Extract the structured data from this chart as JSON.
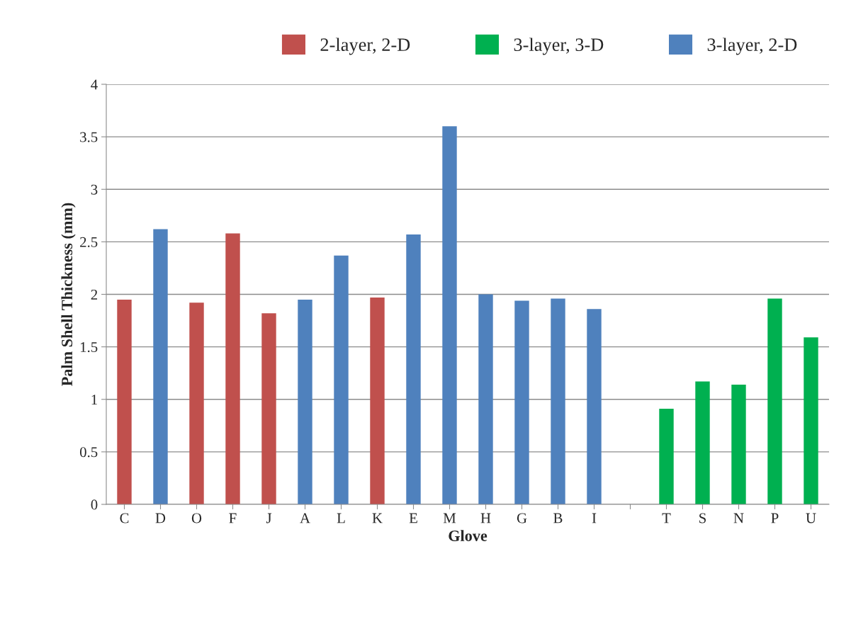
{
  "chart_data": {
    "type": "bar",
    "xlabel": "Glove",
    "ylabel": "Palm Shell Thickness (mm)",
    "categories": [
      "C",
      "D",
      "O",
      "F",
      "J",
      "A",
      "L",
      "K",
      "E",
      "M",
      "H",
      "G",
      "B",
      "I",
      null,
      "T",
      "S",
      "N",
      "P",
      "U"
    ],
    "series": [
      {
        "name": "2-layer, 2-D",
        "color": "#c0504d",
        "values": [
          1.95,
          null,
          1.92,
          2.58,
          1.82,
          null,
          null,
          1.97,
          null,
          null,
          null,
          null,
          null,
          null,
          null,
          null,
          null,
          null,
          null,
          null
        ]
      },
      {
        "name": "3-layer, 3-D",
        "color": "#00b050",
        "values": [
          null,
          null,
          null,
          null,
          null,
          null,
          null,
          null,
          null,
          null,
          null,
          null,
          null,
          null,
          null,
          0.91,
          1.17,
          1.14,
          1.96,
          1.59
        ]
      },
      {
        "name": "3-layer, 2-D",
        "color": "#4f81bd",
        "values": [
          null,
          2.62,
          null,
          null,
          null,
          1.95,
          2.37,
          null,
          2.57,
          3.6,
          2.0,
          1.94,
          1.96,
          1.86,
          null,
          null,
          null,
          null,
          null,
          null
        ]
      }
    ],
    "ylim": [
      0,
      4
    ],
    "yticks": [
      {
        "value": 0,
        "label": "0"
      },
      0.5,
      {
        "value": 1,
        "label": "1"
      },
      1.5,
      {
        "value": 2,
        "label": "2"
      },
      2.5,
      {
        "value": 3,
        "label": "3"
      },
      3.5,
      {
        "value": 4,
        "label": "4"
      }
    ],
    "grid": "y",
    "legend": "top"
  }
}
